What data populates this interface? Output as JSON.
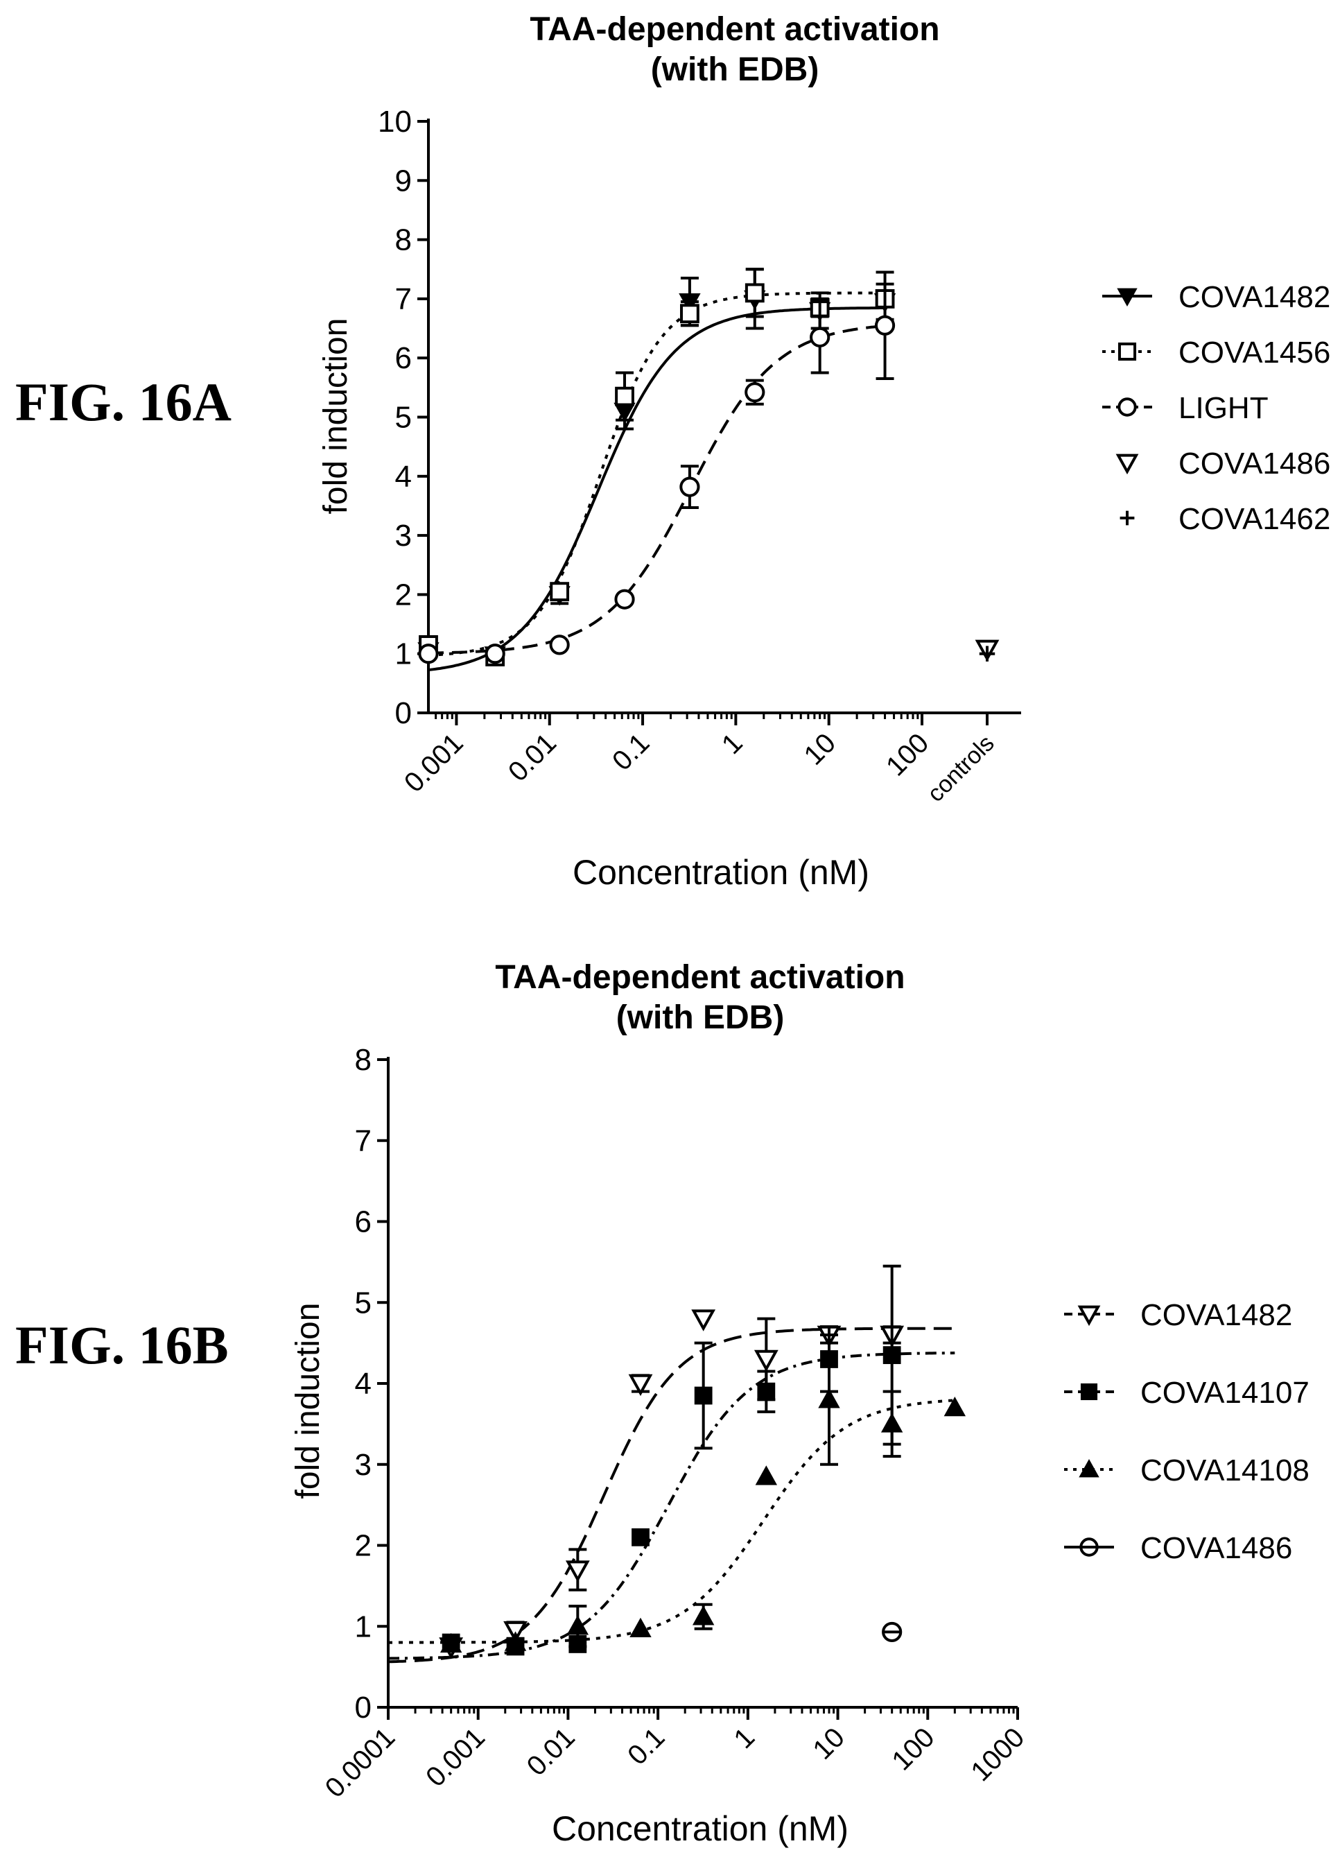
{
  "figures": [
    {
      "label": "FIG. 16A"
    },
    {
      "label": "FIG. 16B"
    }
  ],
  "chart_data": [
    {
      "type": "scatter",
      "panel": "FIG. 16A",
      "title": "TAA-dependent activation\n(with EDB)",
      "xlabel": "Concentration (nM)",
      "ylabel": "fold induction",
      "xscale": "log",
      "xlim": [
        0.0005,
        100
      ],
      "ylim": [
        0,
        10
      ],
      "xticks": [
        "0.001",
        "0.01",
        "0.1",
        "1",
        "10",
        "100"
      ],
      "yticks": [
        "0",
        "1",
        "2",
        "3",
        "4",
        "5",
        "6",
        "7",
        "8",
        "9",
        "10"
      ],
      "extra_xtick": "controls",
      "legend_position": "right",
      "series": [
        {
          "name": "COVA1482",
          "marker": "filled-triangle-down",
          "line": "solid",
          "fit": {
            "bottom": 0.65,
            "top": 6.85,
            "ec50": 0.033,
            "hill": 1.05
          },
          "x": [
            0.0005,
            0.0026,
            0.0128,
            0.064,
            0.32,
            1.6,
            8,
            40
          ],
          "y": [
            1.05,
            0.98,
            2.0,
            5.1,
            6.95,
            7.0,
            6.8,
            6.95
          ],
          "err": [
            0.05,
            0.05,
            0.15,
            0.3,
            0.4,
            0.5,
            0.3,
            0.3
          ]
        },
        {
          "name": "COVA1456",
          "marker": "open-square",
          "line": "dotted",
          "fit": {
            "bottom": 0.95,
            "top": 7.1,
            "ec50": 0.035,
            "hill": 1.3
          },
          "x": [
            0.0005,
            0.0026,
            0.0128,
            0.064,
            0.32,
            1.6,
            8,
            40
          ],
          "y": [
            1.15,
            0.95,
            2.05,
            5.35,
            6.75,
            7.1,
            6.85,
            7.0
          ],
          "err": [
            0.05,
            0.05,
            0.1,
            0.4,
            0.2,
            0.4,
            0.15,
            0.1
          ]
        },
        {
          "name": "LIGHT",
          "marker": "open-circle",
          "line": "dashed",
          "fit": {
            "bottom": 1.0,
            "top": 6.6,
            "ec50": 0.33,
            "hill": 0.95
          },
          "x": [
            0.0005,
            0.0026,
            0.0128,
            0.064,
            0.32,
            1.6,
            8,
            40
          ],
          "y": [
            1.0,
            1.0,
            1.15,
            1.92,
            3.82,
            5.42,
            6.35,
            6.55
          ],
          "err": [
            0.05,
            0.05,
            0.05,
            0.05,
            0.35,
            0.2,
            0.6,
            0.9
          ]
        },
        {
          "name": "COVA1486",
          "marker": "open-triangle-down",
          "line": "none",
          "x": [
            "controls"
          ],
          "y": [
            1.08
          ],
          "err": [
            0.05
          ]
        },
        {
          "name": "COVA1462",
          "marker": "plus",
          "line": "none",
          "x": [
            "controls"
          ],
          "y": [
            1.0
          ],
          "err": [
            0.05
          ]
        }
      ]
    },
    {
      "type": "scatter",
      "panel": "FIG. 16B",
      "title": "TAA-dependent activation\n(with EDB)",
      "xlabel": "Concentration (nM)",
      "ylabel": "fold induction",
      "xscale": "log",
      "xlim": [
        0.0001,
        1000
      ],
      "ylim": [
        0,
        8
      ],
      "xticks": [
        "0.0001",
        "0.001",
        "0.01",
        "0.1",
        "1",
        "10",
        "100",
        "1000"
      ],
      "yticks": [
        "0",
        "1",
        "2",
        "3",
        "4",
        "5",
        "6",
        "7",
        "8"
      ],
      "legend_position": "right",
      "series": [
        {
          "name": "COVA1482",
          "marker": "open-triangle-down",
          "line": "long-dash",
          "fit": {
            "bottom": 0.55,
            "top": 4.68,
            "ec50": 0.025,
            "hill": 1.05
          },
          "x": [
            0.0005,
            0.0026,
            0.0128,
            0.064,
            0.32,
            1.6,
            8,
            40
          ],
          "y": [
            0.75,
            0.95,
            1.7,
            4.0,
            4.8,
            4.3,
            4.6,
            4.6
          ],
          "err": [
            0.05,
            0.1,
            0.25,
            0.1,
            0.05,
            0.5,
            0.1,
            0.1
          ]
        },
        {
          "name": "COVA14107",
          "marker": "filled-square",
          "line": "dash-dot",
          "fit": {
            "bottom": 0.6,
            "top": 4.38,
            "ec50": 0.13,
            "hill": 0.95
          },
          "x": [
            0.0005,
            0.0026,
            0.0128,
            0.064,
            0.32,
            1.6,
            8,
            40
          ],
          "y": [
            0.8,
            0.75,
            0.78,
            2.1,
            3.85,
            3.9,
            4.3,
            4.35
          ],
          "err": [
            0.05,
            0.05,
            0.05,
            0.05,
            0.65,
            0.25,
            0.4,
            1.1
          ]
        },
        {
          "name": "COVA14108",
          "marker": "filled-triangle-up",
          "line": "dotted",
          "fit": {
            "bottom": 0.8,
            "top": 3.82,
            "ec50": 1.5,
            "hill": 0.95
          },
          "x": [
            0.0005,
            0.0026,
            0.0128,
            0.064,
            0.32,
            1.6,
            8,
            40,
            200
          ],
          "y": [
            0.78,
            0.8,
            1.0,
            0.97,
            1.12,
            2.85,
            3.8,
            3.5,
            3.7
          ],
          "err": [
            0.05,
            0.05,
            0.25,
            0.05,
            0.15,
            0.05,
            0.8,
            0.4,
            0.05
          ]
        },
        {
          "name": "COVA1486",
          "marker": "open-circle-bar",
          "line": "solid",
          "x": [
            40
          ],
          "y": [
            0.93
          ],
          "err": [
            0.03
          ]
        }
      ]
    }
  ]
}
